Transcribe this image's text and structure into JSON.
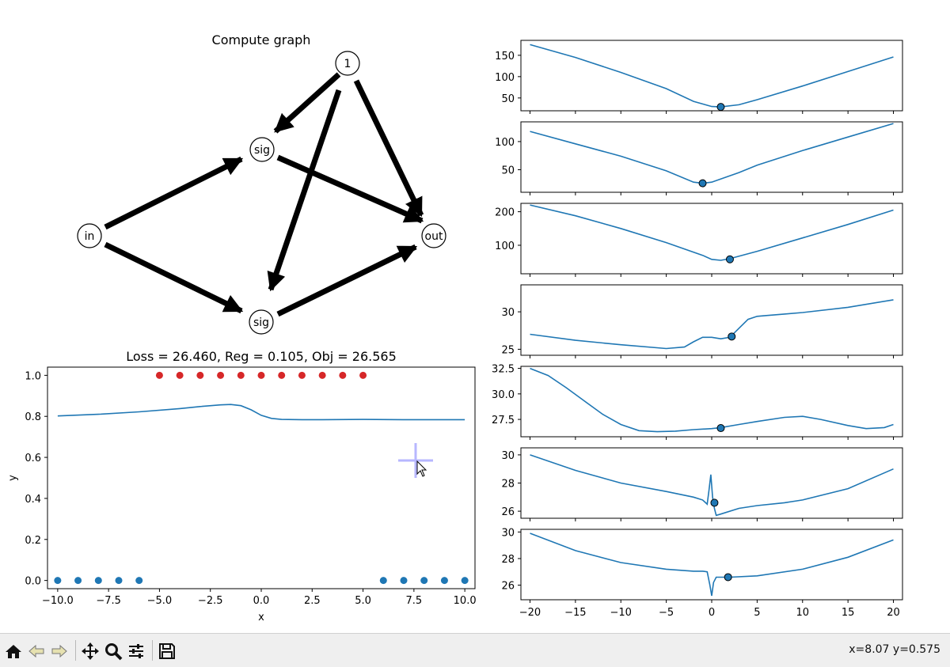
{
  "graph": {
    "title": "Compute graph",
    "nodes": [
      {
        "id": "one",
        "label": "1"
      },
      {
        "id": "sig_top",
        "label": "sig"
      },
      {
        "id": "in",
        "label": "in"
      },
      {
        "id": "out",
        "label": "out"
      },
      {
        "id": "sig_bot",
        "label": "sig"
      }
    ]
  },
  "main_plot": {
    "title": "Loss = 26.460, Reg = 0.105, Obj = 26.565",
    "xlabel": "x",
    "ylabel": "y"
  },
  "toolbar": {
    "buttons": [
      "home",
      "back",
      "forward",
      "pan",
      "zoom",
      "configure-subplots",
      "save"
    ],
    "coord_text": "x=8.07 y=0.575"
  },
  "colors": {
    "line": "#1f77b4",
    "class0": "#1f77b4",
    "class1": "#d62728",
    "cursor_cross": "#b0b0ff"
  },
  "chart_data": [
    {
      "type": "scatter",
      "title": "Loss = 26.460, Reg = 0.105, Obj = 26.565",
      "xlabel": "x",
      "ylabel": "y",
      "xlim": [
        -10.5,
        10.5
      ],
      "ylim": [
        -0.04,
        1.04
      ],
      "xticks": [
        -10.0,
        -7.5,
        -5.0,
        -2.5,
        0.0,
        2.5,
        5.0,
        7.5,
        10.0
      ],
      "xtick_labels": [
        "−10.0",
        "−7.5",
        "−5.0",
        "−2.5",
        "0.0",
        "2.5",
        "5.0",
        "7.5",
        "10.0"
      ],
      "yticks": [
        0.0,
        0.2,
        0.4,
        0.6,
        0.8,
        1.0
      ],
      "ytick_labels": [
        "0.0",
        "0.2",
        "0.4",
        "0.6",
        "0.8",
        "1.0"
      ],
      "series": [
        {
          "kind": "scatter",
          "color": "#d62728",
          "x": [
            -5,
            -4,
            -3,
            -2,
            -1,
            0,
            1,
            2,
            3,
            4,
            5
          ],
          "y": [
            1,
            1,
            1,
            1,
            1,
            1,
            1,
            1,
            1,
            1,
            1
          ]
        },
        {
          "kind": "scatter",
          "color": "#1f77b4",
          "x": [
            -10,
            -9,
            -8,
            -7,
            -6,
            6,
            7,
            8,
            9,
            10
          ],
          "y": [
            0,
            0,
            0,
            0,
            0,
            0,
            0,
            0,
            0,
            0
          ]
        },
        {
          "kind": "line",
          "color": "#1f77b4",
          "x": [
            -10,
            -8,
            -6,
            -4,
            -3,
            -2,
            -1.5,
            -1,
            -0.5,
            0,
            0.5,
            1,
            2,
            3,
            5,
            7,
            10
          ],
          "y": [
            0.802,
            0.81,
            0.822,
            0.838,
            0.848,
            0.856,
            0.858,
            0.852,
            0.832,
            0.805,
            0.79,
            0.785,
            0.784,
            0.784,
            0.785,
            0.784,
            0.784
          ]
        }
      ]
    },
    {
      "type": "line",
      "xlim": [
        -21,
        21
      ],
      "ylim": [
        20,
        185
      ],
      "yticks": [
        50,
        100,
        150
      ],
      "ytick_labels": [
        "50",
        "100",
        "150"
      ],
      "x": [
        -20,
        -15,
        -10,
        -5,
        -2,
        0,
        1,
        3,
        5,
        10,
        15,
        20
      ],
      "y": [
        175,
        145,
        110,
        72,
        42,
        30,
        29,
        34,
        46,
        78,
        112,
        146
      ],
      "marker": {
        "x": 1,
        "y": 29
      }
    },
    {
      "type": "line",
      "xlim": [
        -21,
        21
      ],
      "ylim": [
        10,
        135
      ],
      "yticks": [
        50,
        100
      ],
      "ytick_labels": [
        "50",
        "100"
      ],
      "x": [
        -20,
        -15,
        -10,
        -5,
        -2,
        -1,
        0,
        3,
        5,
        10,
        15,
        20
      ],
      "y": [
        118,
        96,
        74,
        48,
        28,
        26,
        28,
        45,
        58,
        84,
        108,
        132
      ],
      "marker": {
        "x": -1,
        "y": 26
      }
    },
    {
      "type": "line",
      "xlim": [
        -21,
        21
      ],
      "ylim": [
        15,
        225
      ],
      "yticks": [
        100,
        200
      ],
      "ytick_labels": [
        "100",
        "200"
      ],
      "x": [
        -20,
        -15,
        -10,
        -5,
        -1,
        0,
        1,
        2,
        5,
        10,
        15,
        20
      ],
      "y": [
        220,
        188,
        150,
        108,
        70,
        58,
        55,
        60,
        82,
        122,
        162,
        205
      ],
      "marker": {
        "x": 2,
        "y": 58
      }
    },
    {
      "type": "line",
      "xlim": [
        -21,
        21
      ],
      "ylim": [
        24.2,
        33.6
      ],
      "yticks": [
        25,
        30
      ],
      "ytick_labels": [
        "25",
        "30"
      ],
      "x": [
        -20,
        -15,
        -10,
        -5,
        -3,
        -2,
        -1,
        0,
        1,
        2,
        3,
        4,
        5,
        6,
        8,
        10,
        15,
        20
      ],
      "y": [
        27.0,
        26.2,
        25.6,
        25.1,
        25.3,
        26.0,
        26.6,
        26.6,
        26.4,
        26.6,
        27.8,
        29.0,
        29.4,
        29.5,
        29.7,
        29.9,
        30.6,
        31.6
      ],
      "marker": {
        "x": 2.2,
        "y": 26.7
      }
    },
    {
      "type": "line",
      "xlim": [
        -21,
        21
      ],
      "ylim": [
        25.8,
        32.7
      ],
      "yticks": [
        27.5,
        30.0,
        32.5
      ],
      "ytick_labels": [
        "27.5",
        "30.0",
        "32.5"
      ],
      "x": [
        -20,
        -18,
        -16,
        -14,
        -12,
        -10,
        -8,
        -6,
        -4,
        -2,
        0,
        1,
        3,
        5,
        8,
        10,
        12,
        15,
        17,
        19,
        20
      ],
      "y": [
        32.5,
        31.8,
        30.6,
        29.3,
        28.0,
        27.0,
        26.4,
        26.3,
        26.35,
        26.5,
        26.6,
        26.7,
        27.0,
        27.3,
        27.7,
        27.8,
        27.5,
        26.9,
        26.6,
        26.7,
        27.0
      ],
      "marker": {
        "x": 1,
        "y": 26.65
      }
    },
    {
      "type": "line",
      "xlim": [
        -21,
        21
      ],
      "ylim": [
        25.5,
        30.5
      ],
      "yticks": [
        26,
        28,
        30
      ],
      "ytick_labels": [
        "26",
        "28",
        "30"
      ],
      "x": [
        -20,
        -15,
        -10,
        -5,
        -2,
        -1,
        -0.5,
        -0.3,
        -0.1,
        0.1,
        0.3,
        0.5,
        1,
        3,
        5,
        8,
        10,
        15,
        20
      ],
      "y": [
        30.0,
        28.9,
        28.0,
        27.4,
        27.0,
        26.8,
        26.5,
        27.5,
        28.6,
        27.0,
        26.2,
        25.7,
        25.8,
        26.2,
        26.4,
        26.6,
        26.8,
        27.6,
        29.0
      ],
      "marker": {
        "x": 0.3,
        "y": 26.6
      }
    },
    {
      "type": "line",
      "xlim": [
        -21,
        21
      ],
      "ylim": [
        24.9,
        30.2
      ],
      "yticks": [
        26,
        28,
        30
      ],
      "ytick_labels": [
        "26",
        "28",
        "30"
      ],
      "xticks": [
        -20,
        -15,
        -10,
        -5,
        0,
        5,
        10,
        15,
        20
      ],
      "xtick_labels": [
        "−20",
        "−15",
        "−10",
        "−5",
        "0",
        "5",
        "10",
        "15",
        "20"
      ],
      "x": [
        -20,
        -15,
        -10,
        -5,
        -2,
        -1,
        -0.5,
        -0.2,
        0,
        0.2,
        0.5,
        1,
        2,
        5,
        10,
        15,
        20
      ],
      "y": [
        29.9,
        28.6,
        27.7,
        27.2,
        27.05,
        27.05,
        27.0,
        26.0,
        25.2,
        26.2,
        26.6,
        26.6,
        26.6,
        26.7,
        27.2,
        28.1,
        29.4
      ],
      "marker": {
        "x": 1.8,
        "y": 26.6
      }
    }
  ]
}
